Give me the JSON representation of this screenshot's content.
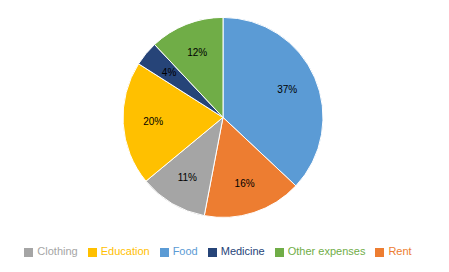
{
  "chart_data": {
    "type": "pie",
    "categories": [
      "Food",
      "Rent",
      "Clothing",
      "Education",
      "Medicine",
      "Other expenses"
    ],
    "values": [
      37,
      16,
      11,
      20,
      4,
      12
    ],
    "value_labels": [
      "37%",
      "16%",
      "11%",
      "20%",
      "4%",
      "12%"
    ],
    "colors": [
      "#5B9BD5",
      "#ED7D31",
      "#A5A5A5",
      "#FFC000",
      "#264478",
      "#70AD47"
    ],
    "data_labels": true,
    "legend": "bottom"
  }
}
